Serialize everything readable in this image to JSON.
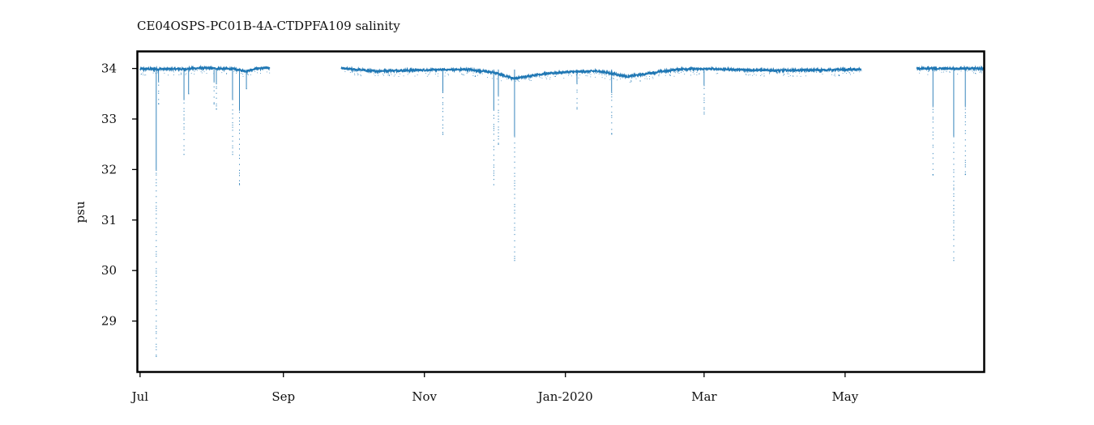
{
  "chart_data": {
    "type": "scatter",
    "title": "CE04OSPS-PC01B-4A-CTDPFA109 salinity",
    "xlabel": "",
    "ylabel": "psu",
    "xlim": [
      "2019-06-30",
      "2020-06-30"
    ],
    "ylim": [
      28.0,
      34.33
    ],
    "x_ticks": [
      {
        "date": "2019-07-01",
        "label": "Jul"
      },
      {
        "date": "2019-09-01",
        "label": "Sep"
      },
      {
        "date": "2019-11-01",
        "label": "Nov"
      },
      {
        "date": "2020-01-01",
        "label": "Jan-2020"
      },
      {
        "date": "2020-03-01",
        "label": "Mar"
      },
      {
        "date": "2020-05-01",
        "label": "May"
      }
    ],
    "y_ticks": [
      29,
      30,
      31,
      32,
      33,
      34
    ],
    "grid": false,
    "legend": "none",
    "color": "#1f77b4",
    "series": [
      {
        "baseline": [
          {
            "start": "2019-07-01",
            "end": "2019-08-26",
            "points": [
              [
                "2019-07-01",
                33.99
              ],
              [
                "2019-07-20",
                33.99
              ],
              [
                "2019-07-27",
                34.01
              ],
              [
                "2019-08-10",
                33.99
              ],
              [
                "2019-08-16",
                33.95
              ],
              [
                "2019-08-20",
                34.0
              ],
              [
                "2019-08-26",
                34.01
              ]
            ]
          },
          {
            "start": "2019-09-26",
            "end": "2020-05-08",
            "points": [
              [
                "2019-09-26",
                34.0
              ],
              [
                "2019-10-10",
                33.95
              ],
              [
                "2019-11-01",
                33.97
              ],
              [
                "2019-11-20",
                33.98
              ],
              [
                "2019-12-01",
                33.92
              ],
              [
                "2019-12-10",
                33.8
              ],
              [
                "2019-12-20",
                33.88
              ],
              [
                "2020-01-01",
                33.93
              ],
              [
                "2020-01-15",
                33.95
              ],
              [
                "2020-01-28",
                33.84
              ],
              [
                "2020-02-10",
                33.93
              ],
              [
                "2020-02-20",
                33.99
              ],
              [
                "2020-03-05",
                33.99
              ],
              [
                "2020-03-20",
                33.97
              ],
              [
                "2020-04-01",
                33.96
              ],
              [
                "2020-04-20",
                33.97
              ],
              [
                "2020-05-08",
                33.98
              ]
            ]
          },
          {
            "start": "2020-06-01",
            "end": "2020-06-30",
            "points": [
              [
                "2020-06-01",
                34.0
              ],
              [
                "2020-06-30",
                34.0
              ]
            ]
          }
        ],
        "spikes": [
          {
            "date": "2019-07-08",
            "min": 28.3
          },
          {
            "date": "2019-07-09",
            "min": 33.3
          },
          {
            "date": "2019-07-20",
            "min": 32.3
          },
          {
            "date": "2019-07-22",
            "min": 33.5
          },
          {
            "date": "2019-08-02",
            "min": 33.3
          },
          {
            "date": "2019-08-03",
            "min": 33.2
          },
          {
            "date": "2019-08-10",
            "min": 32.3
          },
          {
            "date": "2019-08-13",
            "min": 31.7
          },
          {
            "date": "2019-08-16",
            "min": 33.6
          },
          {
            "date": "2019-11-09",
            "min": 32.7
          },
          {
            "date": "2019-12-01",
            "min": 31.7
          },
          {
            "date": "2019-12-03",
            "min": 32.5
          },
          {
            "date": "2019-12-10",
            "min": 30.2
          },
          {
            "date": "2020-01-06",
            "min": 33.2
          },
          {
            "date": "2020-01-21",
            "min": 32.7
          },
          {
            "date": "2020-03-01",
            "min": 33.1
          },
          {
            "date": "2020-06-08",
            "min": 31.9
          },
          {
            "date": "2020-06-17",
            "min": 30.2
          },
          {
            "date": "2020-06-22",
            "min": 31.9
          }
        ]
      }
    ]
  }
}
